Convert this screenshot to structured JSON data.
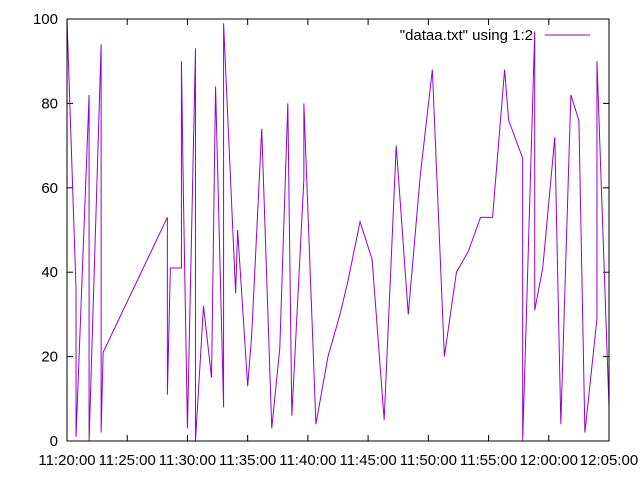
{
  "chart_data": {
    "type": "line",
    "title": "",
    "xlabel": "",
    "ylabel": "",
    "ylim": [
      0,
      100
    ],
    "yticks": [
      0,
      20,
      40,
      60,
      80,
      100
    ],
    "xlim": [
      "11:20:00",
      "12:05:00"
    ],
    "xticks": [
      "11:20:00",
      "11:25:00",
      "11:30:00",
      "11:35:00",
      "11:40:00",
      "11:45:00",
      "11:50:00",
      "11:55:00",
      "12:00:00",
      "12:05:00"
    ],
    "grid": false,
    "legend": {
      "position": "top-right"
    },
    "series": [
      {
        "name": "\"dataa.txt\" using 1:2",
        "color": "#9400d3",
        "x": [
          "11:20:00",
          "11:20:45",
          "11:20:45",
          "11:21:50",
          "11:21:50",
          "11:22:50",
          "11:22:50",
          "11:23:00",
          "11:28:20",
          "11:28:20",
          "11:28:35",
          "11:29:30",
          "11:29:30",
          "11:29:40",
          "11:30:00",
          "11:30:40",
          "11:30:40",
          "11:31:20",
          "11:32:00",
          "11:32:20",
          "11:33:00",
          "11:33:00",
          "11:34:00",
          "11:34:10",
          "11:35:00",
          "11:35:20",
          "11:36:10",
          "11:37:00",
          "11:37:40",
          "11:38:20",
          "11:38:40",
          "11:39:40",
          "11:39:40",
          "11:40:40",
          "11:41:40",
          "11:42:40",
          "11:43:20",
          "11:44:20",
          "11:45:20",
          "11:46:20",
          "11:47:20",
          "11:48:20",
          "11:49:20",
          "11:50:20",
          "11:51:20",
          "11:52:20",
          "11:53:20",
          "11:54:20",
          "11:55:20",
          "11:56:20",
          "11:56:40",
          "11:57:50",
          "11:57:50",
          "11:58:50",
          "11:58:50",
          "11:59:30",
          "12:00:30",
          "12:01:00",
          "12:01:50",
          "12:02:30",
          "12:03:00",
          "12:04:00",
          "12:04:00",
          "12:05:00"
        ],
        "y": [
          100,
          36,
          1,
          82,
          0,
          94,
          2,
          21,
          53,
          11,
          41,
          41,
          90,
          58,
          3,
          93,
          0,
          32,
          15,
          84,
          8,
          99,
          35,
          50,
          13,
          25,
          74,
          3,
          22,
          80,
          6,
          62,
          80,
          4,
          20,
          30,
          38,
          52,
          43,
          5,
          70,
          30,
          63,
          88,
          20,
          40,
          45,
          53,
          53,
          88,
          76,
          67,
          0,
          97,
          31,
          41,
          72,
          4,
          82,
          76,
          2,
          29,
          90,
          8
        ]
      }
    ]
  }
}
